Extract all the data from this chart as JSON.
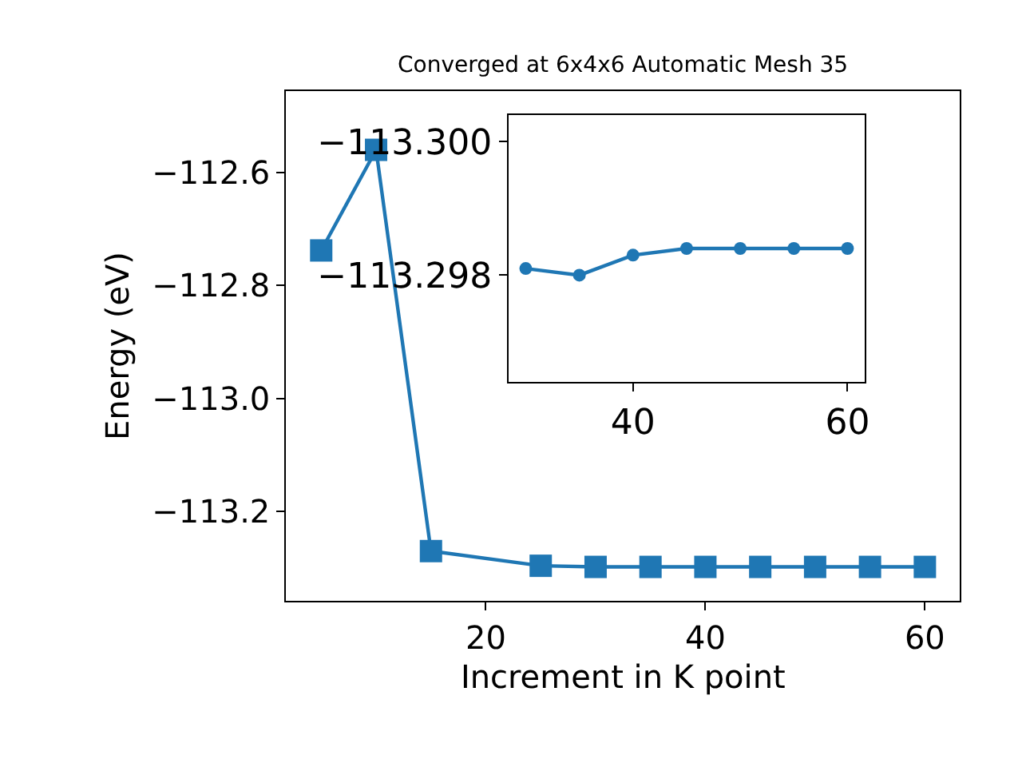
{
  "chart_data": [
    {
      "type": "line",
      "title": "Converged at 6x4x6 Automatic Mesh 35",
      "xlabel": "Increment in K point",
      "ylabel": "Energy (eV)",
      "x": [
        5,
        10,
        15,
        25,
        30,
        35,
        40,
        45,
        50,
        55,
        60
      ],
      "series": [
        {
          "color": "#1f77b4",
          "values": [
            -112.738,
            -112.56,
            -113.27,
            -113.296,
            -113.298,
            -113.298,
            -113.298,
            -113.298,
            -113.298,
            -113.298,
            -113.298
          ]
        }
      ],
      "marker": "square",
      "xlim": [
        1.8,
        63.2
      ],
      "xticks": [
        20,
        40,
        60
      ],
      "ylim": [
        -113.358,
        -112.456
      ],
      "yticks": [
        {
          "value": -112.6,
          "label": "−112.6"
        },
        {
          "value": -112.8,
          "label": "−112.8"
        },
        {
          "value": -113.0,
          "label": "−113.0"
        },
        {
          "value": -113.2,
          "label": "−113.2"
        }
      ]
    },
    {
      "type": "line",
      "x": [
        30,
        35,
        40,
        45,
        50,
        55,
        60
      ],
      "series": [
        {
          "color": "#1f77b4",
          "values": [
            -113.2981,
            -113.298,
            -113.2983,
            -113.2984,
            -113.2984,
            -113.2984,
            -113.2984
          ]
        }
      ],
      "marker": "circle",
      "xlim": [
        28.4,
        61.6
      ],
      "xticks": [
        40,
        60
      ],
      "ylim": [
        -113.2964,
        -113.3004
      ],
      "yticks": [
        {
          "value": -113.3,
          "label": "−113.300"
        },
        {
          "value": -113.298,
          "label": "−113.298"
        }
      ]
    }
  ]
}
